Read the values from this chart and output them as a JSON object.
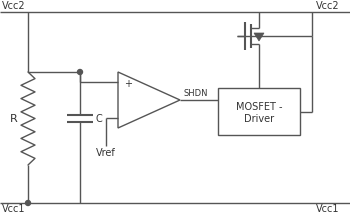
{
  "bg_color": "#ffffff",
  "line_color": "#555555",
  "text_color": "#333333",
  "labels": {
    "Vcc2_left": "Vcc2",
    "Vcc2_right": "Vcc2",
    "Vcc1_left": "Vcc1",
    "Vcc1_right": "Vcc1",
    "R": "R",
    "C": "C",
    "Vref": "Vref",
    "SHDN": "SHDN",
    "MOSFET": "MOSFET -",
    "Driver": "Driver"
  },
  "figsize": [
    3.5,
    2.19
  ],
  "dpi": 100
}
